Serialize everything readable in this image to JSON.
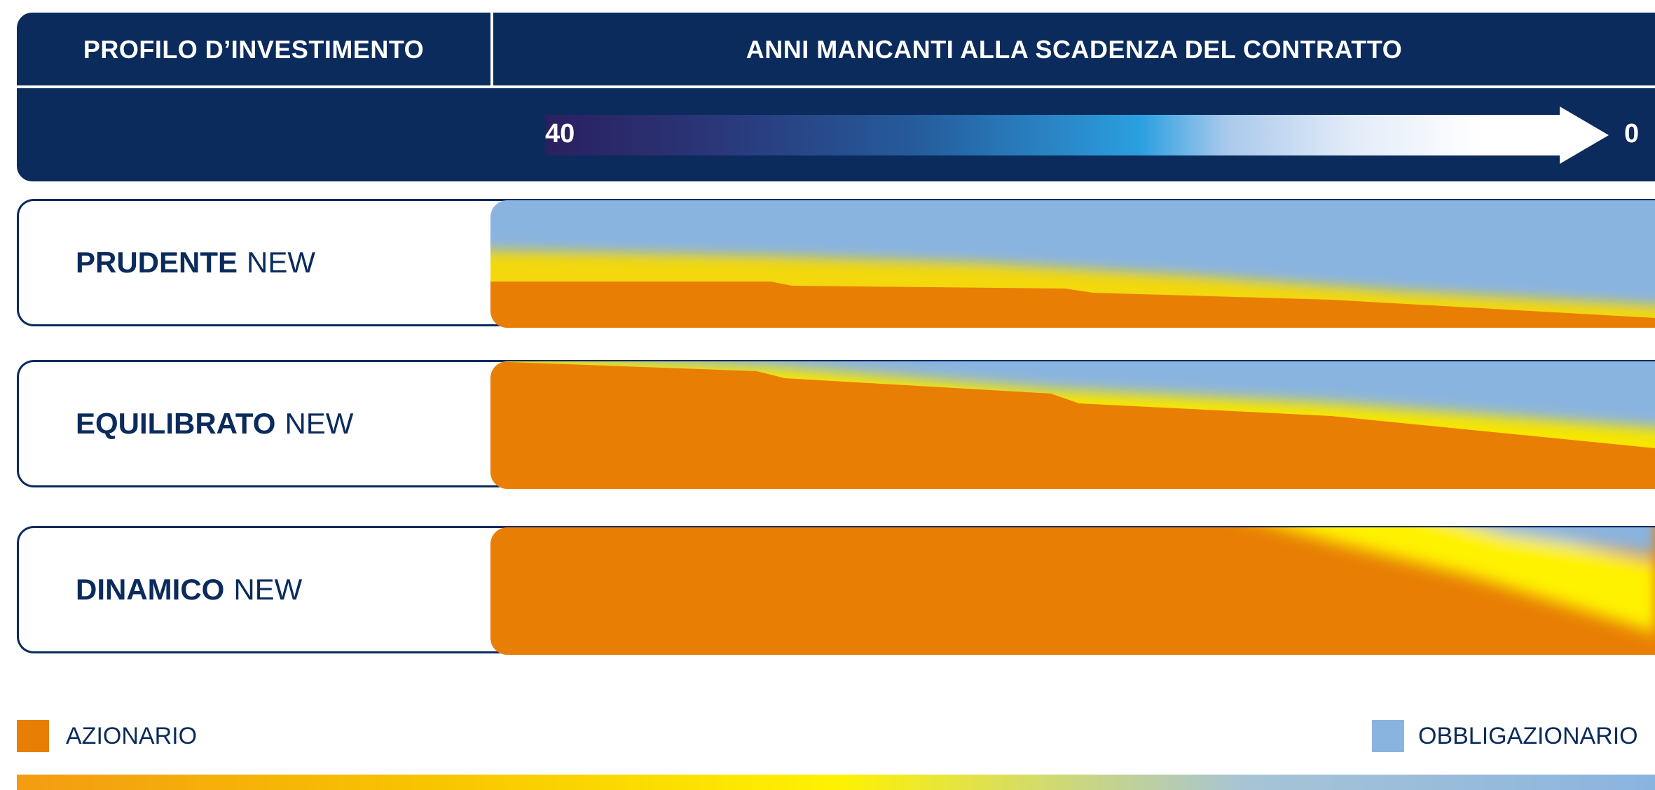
{
  "header": {
    "col_profile": "PROFILO D’INVESTIMENTO",
    "col_years": "ANNI MANCANTI ALLA SCADENZA DEL CONTRATTO",
    "scale_start": "40",
    "scale_end": "0"
  },
  "profiles": [
    {
      "name": "PRUDENTE",
      "suffix": "NEW"
    },
    {
      "name": "EQUILIBRATO",
      "suffix": "NEW"
    },
    {
      "name": "DINAMICO",
      "suffix": "NEW"
    }
  ],
  "legend": {
    "equity_label": "AZIONARIO",
    "bond_label": "OBBLIGAZIONARIO"
  },
  "colors": {
    "navy": "#0a2b5c",
    "equity": "#e87e04",
    "transition": "#fff200",
    "bond": "#8ab4e0"
  }
}
